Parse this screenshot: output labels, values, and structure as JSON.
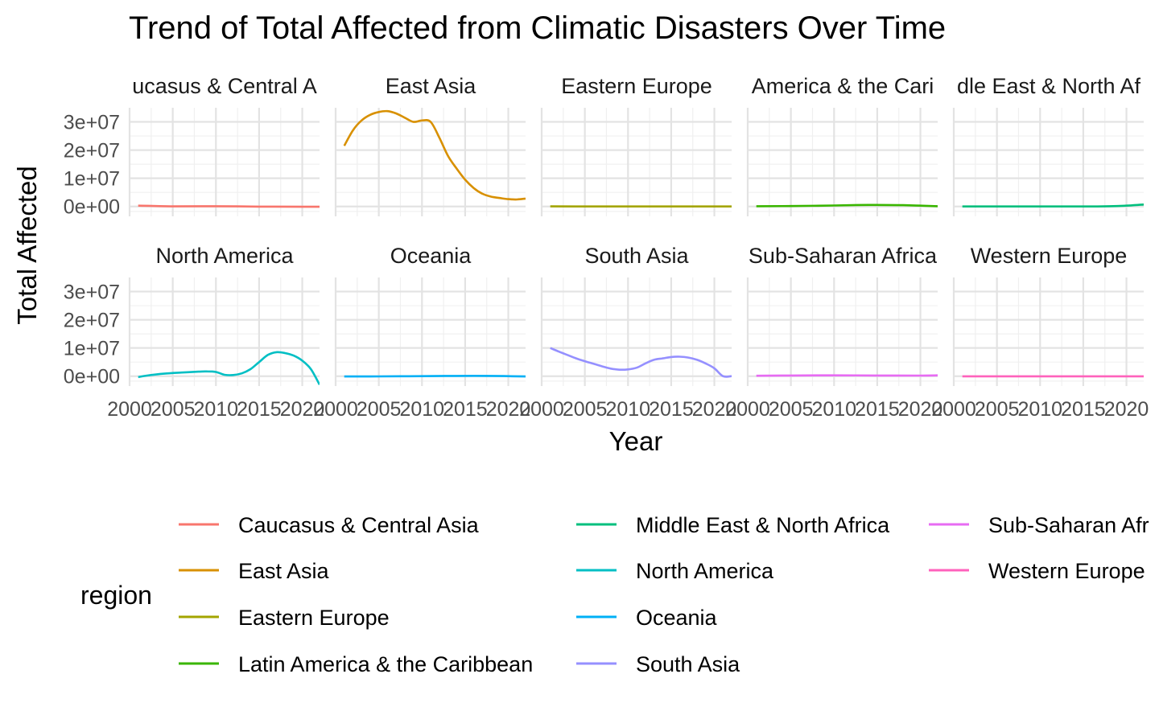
{
  "chart_data": {
    "type": "line",
    "title": "Trend of Total Affected from Climatic Disasters Over Time",
    "xlabel": "Year",
    "ylabel": "Total Affected",
    "xlim": [
      2000,
      2022
    ],
    "ylim": [
      -3500000,
      35000000
    ],
    "x_ticks": [
      "2000",
      "2005",
      "2010",
      "2015",
      "2020"
    ],
    "y_ticks": [
      "0e+00",
      "1e+07",
      "2e+07",
      "3e+07"
    ],
    "y_tick_values": [
      0,
      10000000,
      20000000,
      30000000
    ],
    "x_tick_values": [
      2000,
      2005,
      2010,
      2015,
      2020
    ],
    "facet_layout": "2 rows x 5 columns",
    "grid": true,
    "legend": {
      "title": "region",
      "placement": "bottom",
      "labels": [
        "Caucasus & Central Asia",
        "East Asia",
        "Eastern Europe",
        "Latin America & the Caribbean",
        "Middle East & North Africa",
        "North America",
        "Oceania",
        "South Asia",
        "Sub-Saharan Africa",
        "Western Europe"
      ],
      "visible_labels": [
        "Caucasus & Central Asia",
        "East Asia",
        "Eastern Europe",
        "Latin America & the Caribbean",
        "Middle East & North Africa",
        "North America",
        "Oceania",
        "South Asia",
        "Sub-Saharan Afr",
        "Western Europe"
      ]
    },
    "series": [
      {
        "name": "Caucasus & Central Asia",
        "strip_label": "ucasus & Central A",
        "color": "#F8766D",
        "x": [
          2001,
          2005,
          2010,
          2015,
          2020,
          2022
        ],
        "values": [
          300000,
          50000,
          100000,
          -50000,
          -100000,
          -100000
        ]
      },
      {
        "name": "East Asia",
        "strip_label": "East Asia",
        "color": "#D89000",
        "x": [
          2001,
          2002,
          2003,
          2004,
          2005,
          2006,
          2007,
          2008,
          2009,
          2010,
          2011,
          2012,
          2013,
          2014,
          2015,
          2016,
          2017,
          2018,
          2019,
          2020,
          2021,
          2022
        ],
        "values": [
          21500000,
          27000000,
          30500000,
          32500000,
          33500000,
          33800000,
          33000000,
          31500000,
          30000000,
          30500000,
          30000000,
          24500000,
          18000000,
          13500000,
          9500000,
          6500000,
          4500000,
          3500000,
          3000000,
          2600000,
          2500000,
          2800000
        ]
      },
      {
        "name": "Eastern Europe",
        "strip_label": "Eastern Europe",
        "color": "#A3A500",
        "x": [
          2001,
          2005,
          2010,
          2015,
          2020,
          2022
        ],
        "values": [
          50000,
          20000,
          0,
          0,
          0,
          0
        ]
      },
      {
        "name": "Latin America & the Caribbean",
        "strip_label": "America & the Cari",
        "color": "#39B600",
        "x": [
          2001,
          2005,
          2010,
          2014,
          2018,
          2022
        ],
        "values": [
          100000,
          150000,
          350000,
          550000,
          450000,
          100000
        ]
      },
      {
        "name": "Middle East & North Africa",
        "strip_label": "dle East & North Af",
        "color": "#00BF7D",
        "x": [
          2001,
          2005,
          2010,
          2015,
          2018,
          2020,
          2022
        ],
        "values": [
          0,
          0,
          0,
          0,
          100000,
          300000,
          700000
        ]
      },
      {
        "name": "North America",
        "strip_label": "North America",
        "color": "#00BFC4",
        "x": [
          2001,
          2002,
          2004,
          2006,
          2008,
          2009,
          2010,
          2011,
          2012,
          2013,
          2014,
          2015,
          2016,
          2017,
          2018,
          2019,
          2020,
          2021,
          2022
        ],
        "values": [
          -300000,
          200000,
          900000,
          1300000,
          1600000,
          1700000,
          1500000,
          500000,
          400000,
          1000000,
          2500000,
          5000000,
          7500000,
          8500000,
          8200000,
          7300000,
          5500000,
          2500000,
          -3000000
        ]
      },
      {
        "name": "Oceania",
        "strip_label": "Oceania",
        "color": "#00B0F6",
        "x": [
          2001,
          2005,
          2010,
          2014,
          2018,
          2022
        ],
        "values": [
          -100000,
          -80000,
          0,
          100000,
          100000,
          -100000
        ]
      },
      {
        "name": "South Asia",
        "strip_label": "South Asia",
        "color": "#9590FF",
        "x": [
          2001,
          2002,
          2003,
          2004,
          2005,
          2006,
          2007,
          2008,
          2009,
          2010,
          2011,
          2012,
          2013,
          2014,
          2015,
          2016,
          2017,
          2018,
          2019,
          2020,
          2021,
          2022
        ],
        "values": [
          10000000,
          8700000,
          7500000,
          6300000,
          5300000,
          4400000,
          3500000,
          2700000,
          2300000,
          2400000,
          3000000,
          4500000,
          5800000,
          6300000,
          6800000,
          6900000,
          6600000,
          5800000,
          4500000,
          2800000,
          0,
          0
        ]
      },
      {
        "name": "Sub-Saharan Africa",
        "strip_label": "Sub-Saharan Africa",
        "color": "#E76BF3",
        "x": [
          2001,
          2005,
          2010,
          2015,
          2020,
          2022
        ],
        "values": [
          150000,
          250000,
          300000,
          250000,
          200000,
          300000
        ]
      },
      {
        "name": "Western Europe",
        "strip_label": "Western Europe",
        "color": "#FF62BC",
        "x": [
          2001,
          2005,
          2010,
          2015,
          2020,
          2022
        ],
        "values": [
          -50000,
          -50000,
          -50000,
          -50000,
          -50000,
          -50000
        ]
      }
    ]
  }
}
